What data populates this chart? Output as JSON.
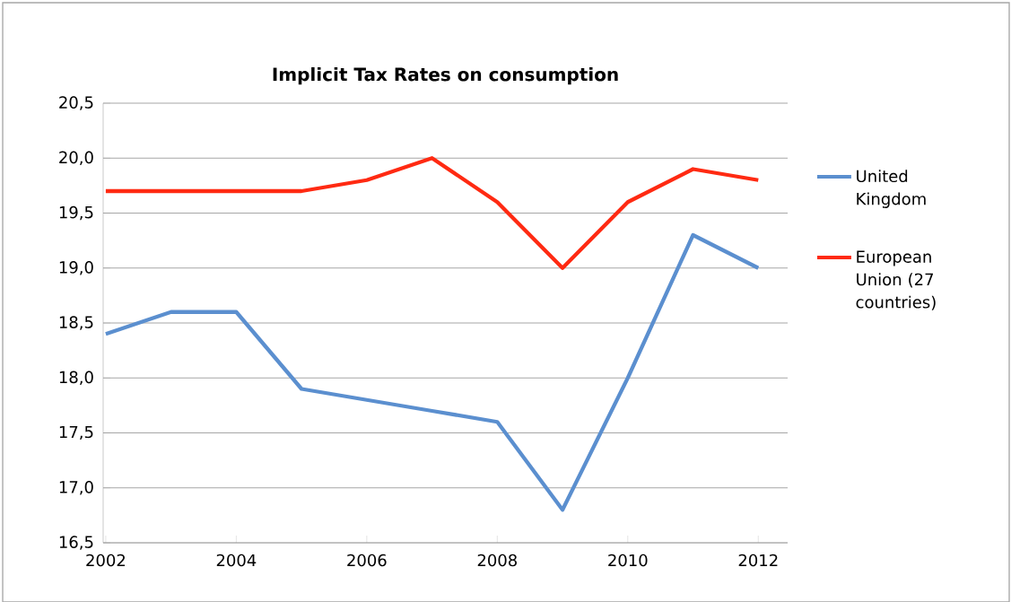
{
  "chart_data": {
    "type": "line",
    "title": "Implicit Tax Rates on consumption",
    "x": [
      2002,
      2003,
      2004,
      2005,
      2006,
      2007,
      2008,
      2009,
      2010,
      2011,
      2012
    ],
    "series": [
      {
        "name": "United Kingdom",
        "color": "#5b8fcf",
        "values": [
          18.4,
          18.6,
          18.6,
          17.9,
          17.8,
          17.7,
          17.6,
          16.8,
          18.0,
          19.3,
          19.0
        ]
      },
      {
        "name": "European Union (27 countries)",
        "color": "#ff2a12",
        "values": [
          19.7,
          19.7,
          19.7,
          19.7,
          19.8,
          20.0,
          19.6,
          19.0,
          19.6,
          19.9,
          19.8
        ]
      }
    ],
    "xlim": [
      2001.96,
      2012.45
    ],
    "xticks": [
      2002,
      2004,
      2006,
      2008,
      2010,
      2012
    ],
    "ylim": [
      16.5,
      20.5
    ],
    "yticks": [
      {
        "value": 16.5,
        "label": "16,5"
      },
      {
        "value": 17.0,
        "label": "17,0"
      },
      {
        "value": 17.5,
        "label": "17,5"
      },
      {
        "value": 18.0,
        "label": "18,0"
      },
      {
        "value": 18.5,
        "label": "18,5"
      },
      {
        "value": 19.0,
        "label": "19,0"
      },
      {
        "value": 19.5,
        "label": "19,5"
      },
      {
        "value": 20.0,
        "label": "20,0"
      },
      {
        "value": 20.5,
        "label": "20,5"
      }
    ],
    "grid": "y",
    "legend": "right",
    "marker": "none",
    "line_style": "solid"
  }
}
